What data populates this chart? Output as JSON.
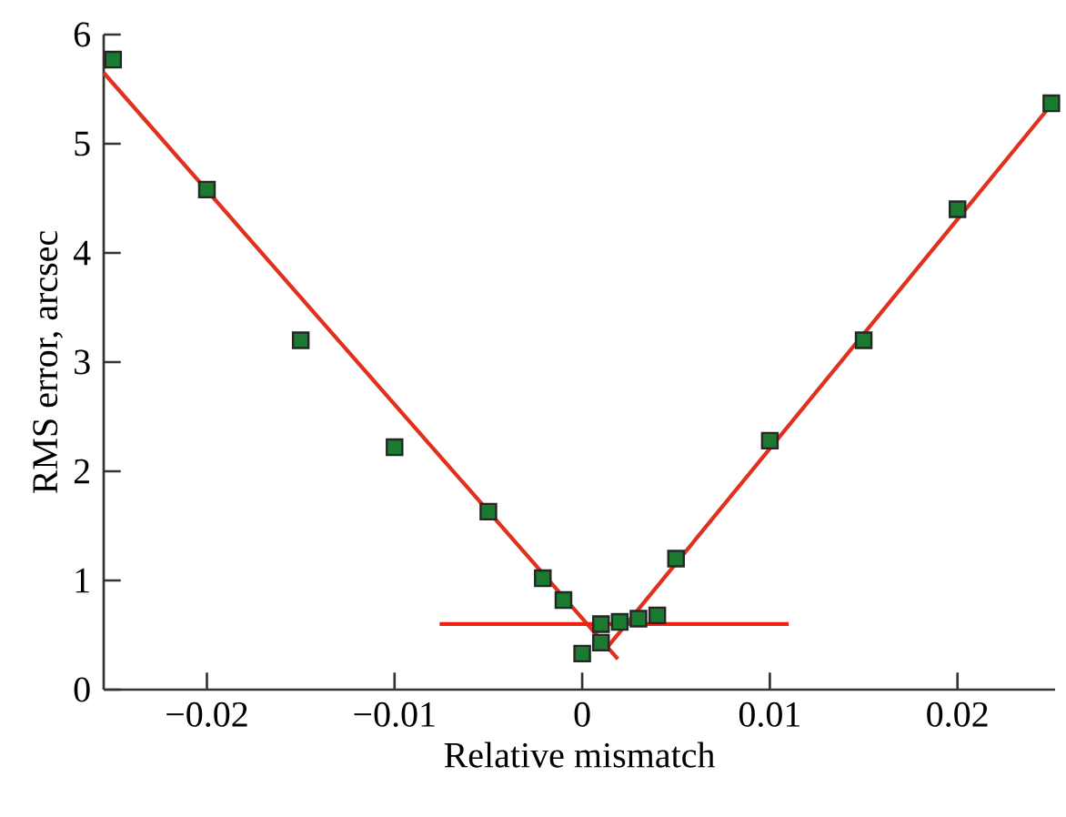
{
  "chart_data": {
    "type": "scatter",
    "xlabel": "Relative mismatch",
    "ylabel": "RMS error, arcsec",
    "xlim": [
      -0.0255,
      0.0252
    ],
    "ylim": [
      0,
      6
    ],
    "xticks": [
      {
        "value": -0.02,
        "label": "−0.02"
      },
      {
        "value": -0.01,
        "label": "−0.01"
      },
      0,
      0.01,
      0.02
    ],
    "yticks": [
      0,
      1,
      2,
      3,
      4,
      5,
      6
    ],
    "grid": false,
    "series": [
      {
        "type": "line",
        "color": "#e0301e",
        "x": [
          -0.0255,
          0.0019
        ],
        "values": [
          5.65,
          0.28
        ]
      },
      {
        "type": "line",
        "color": "#e0301e",
        "x": [
          0.0013,
          0.0252
        ],
        "values": [
          0.38,
          5.4
        ]
      },
      {
        "type": "line",
        "color": "#f02010",
        "x": [
          -0.0076,
          0.011
        ],
        "values": [
          0.6,
          0.6
        ]
      },
      {
        "marker": "square",
        "color": "#1a7a30",
        "x": [
          -0.025,
          -0.02,
          -0.015,
          -0.01,
          -0.005,
          -0.0021,
          -0.001,
          0,
          0.001,
          0.001,
          0.002,
          0.003,
          0.004,
          0.005,
          0.01,
          0.015,
          0.02,
          0.025
        ],
        "values": [
          5.77,
          4.58,
          3.2,
          2.22,
          1.63,
          1.02,
          0.82,
          0.33,
          0.6,
          0.43,
          0.62,
          0.65,
          0.68,
          1.2,
          2.28,
          3.2,
          4.4,
          5.37
        ]
      }
    ]
  }
}
